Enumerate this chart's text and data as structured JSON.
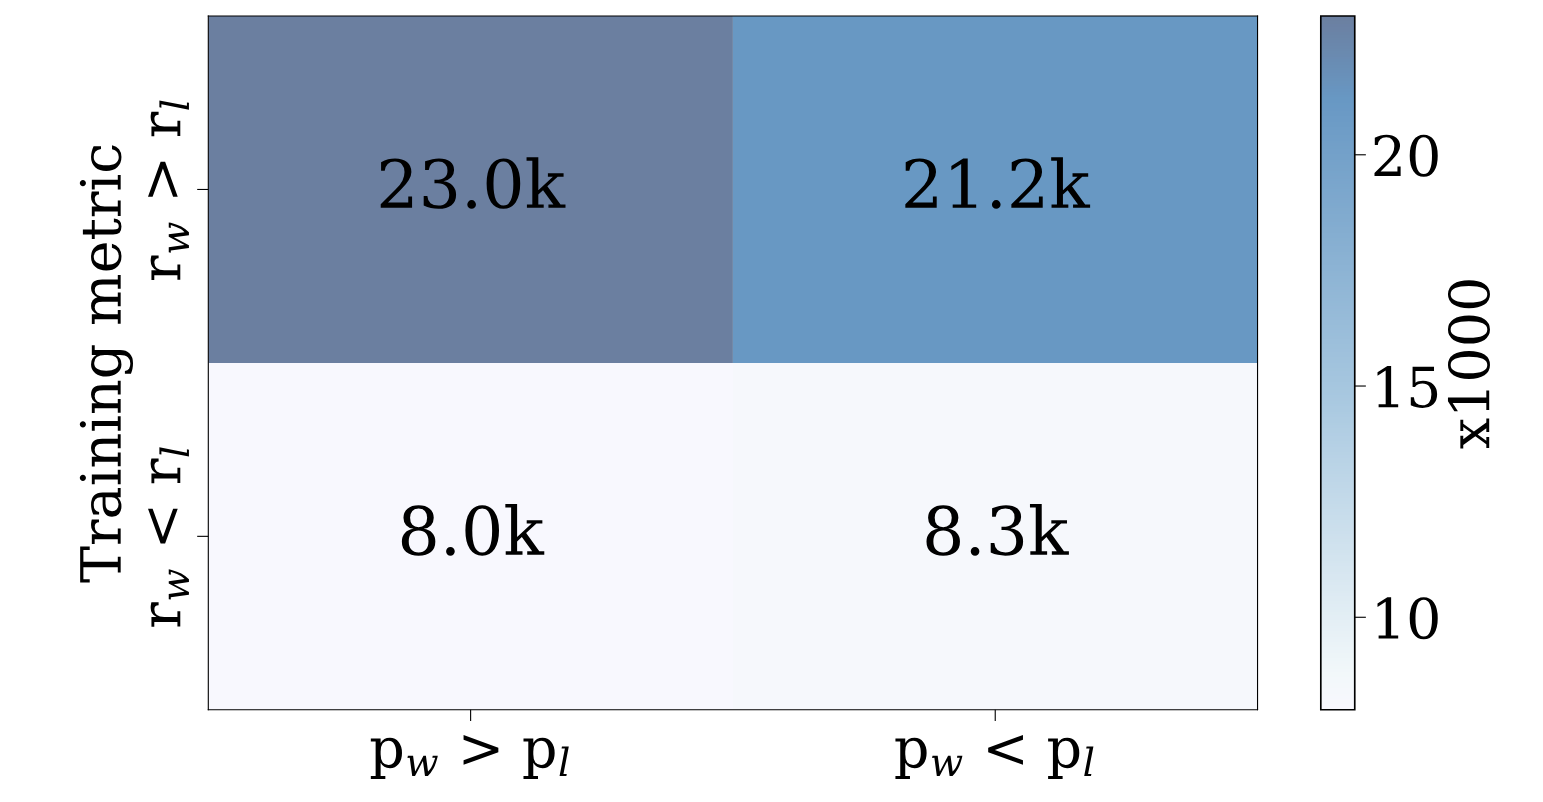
{
  "chart_data": {
    "type": "heatmap",
    "ylabel": "Training metric",
    "clabel": "x1000",
    "categories": [
      "p$_{w}$ > p$_{l}$",
      "p$_{w}$ < p$_{l}$"
    ],
    "y_categories": [
      "r$_{w}$ > r$_{l}$",
      "r$_{w}$ < r$_{l}$"
    ],
    "cells": [
      [
        23.0,
        21.2
      ],
      [
        8.0,
        8.3
      ]
    ],
    "cell_labels": [
      [
        "23.0k",
        "21.2k"
      ],
      [
        "8.0k",
        "8.3k"
      ]
    ],
    "clim": [
      8.0,
      23.0
    ],
    "cticks": [
      10,
      15,
      20
    ]
  }
}
